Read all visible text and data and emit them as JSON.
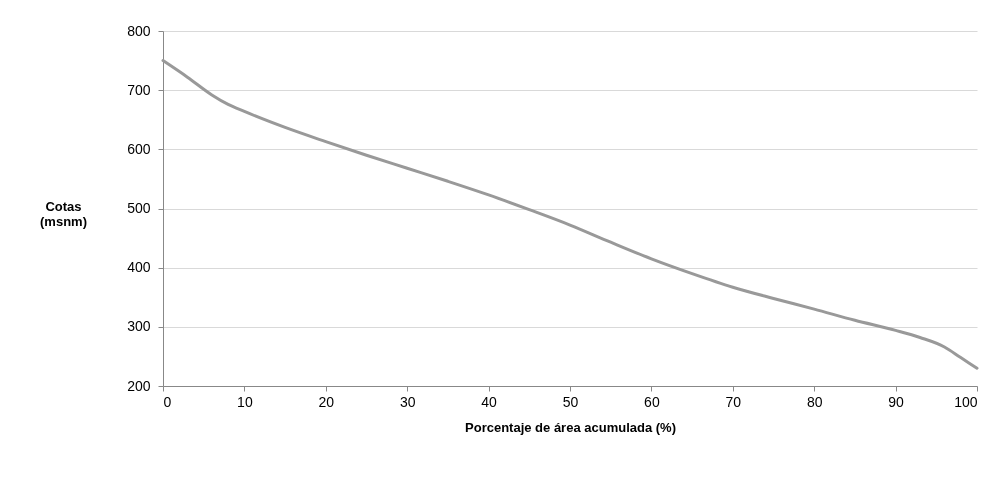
{
  "chart_data": {
    "type": "line",
    "xlabel": "Porcentaje de área acumulada (%)",
    "ylabel": "Cotas (msnm)",
    "x": [
      0,
      3,
      6,
      8,
      10,
      15,
      20,
      25,
      30,
      35,
      40,
      45,
      50,
      55,
      60,
      65,
      70,
      75,
      80,
      85,
      90,
      93,
      96,
      98,
      100
    ],
    "series": [
      {
        "color": "#999999",
        "values": [
          750,
          722,
          692,
          676,
          664,
          637,
          613,
          590,
          568,
          546,
          523,
          498,
          472,
          443,
          415,
          390,
          367,
          348,
          330,
          311,
          294,
          282,
          266,
          248,
          230
        ]
      }
    ],
    "xlim": [
      0,
      100
    ],
    "xticks": [
      0,
      10,
      20,
      30,
      40,
      50,
      60,
      70,
      80,
      90,
      100
    ],
    "ylim": [
      200,
      800
    ],
    "yticks": [
      200,
      300,
      400,
      500,
      600,
      700,
      800
    ],
    "grid": "y",
    "marker": "none",
    "line_style": "solid"
  }
}
